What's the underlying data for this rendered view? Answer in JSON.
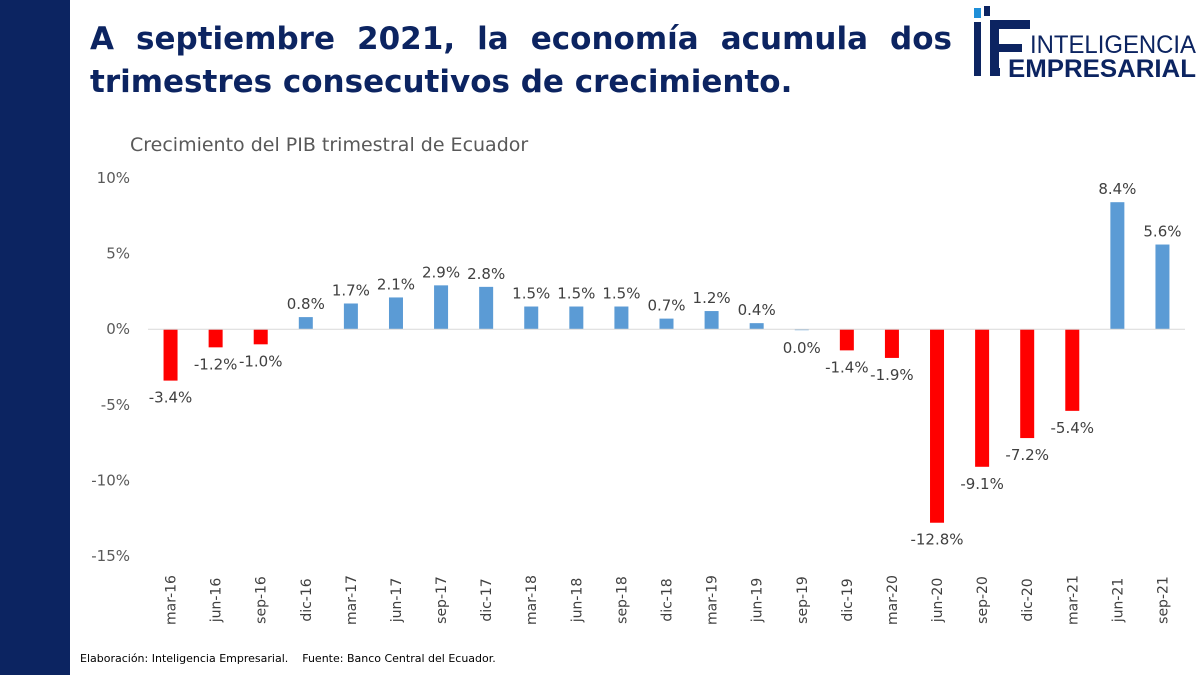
{
  "headline": "A septiembre 2021, la economía acumula dos trimestres consecutivos de  crecimiento.",
  "logo": {
    "line1": "INTELIGENCIA",
    "line2": "EMPRESARIAL",
    "icon": "ie-logo-icon",
    "color": "#0c2461",
    "accent": "#1f8fd8"
  },
  "footer": "Elaboración: Inteligencia Empresarial.    Fuente: Banco Central del Ecuador.",
  "chart_data": {
    "type": "bar",
    "title": "Crecimiento del PIB trimestral de Ecuador",
    "xlabel": "",
    "ylabel": "",
    "ylim": [
      -15,
      10
    ],
    "yticks": [
      10,
      5,
      0,
      -5,
      -10,
      -15
    ],
    "ytick_labels": [
      "10%",
      "5%",
      "0%",
      "-5%",
      "-10%",
      "-15%"
    ],
    "categories": [
      "mar-16",
      "jun-16",
      "sep-16",
      "dic-16",
      "mar-17",
      "jun-17",
      "sep-17",
      "dic-17",
      "mar-18",
      "jun-18",
      "sep-18",
      "dic-18",
      "mar-19",
      "jun-19",
      "sep-19",
      "dic-19",
      "mar-20",
      "jun-20",
      "sep-20",
      "dic-20",
      "mar-21",
      "jun-21",
      "sep-21"
    ],
    "values": [
      -3.4,
      -1.2,
      -1.0,
      0.8,
      1.7,
      2.1,
      2.9,
      2.8,
      1.5,
      1.5,
      1.5,
      0.7,
      1.2,
      0.4,
      0.0,
      -1.4,
      -1.9,
      -12.8,
      -9.1,
      -7.2,
      -5.4,
      8.4,
      5.6
    ],
    "data_labels": [
      "-3.4%",
      "-1.2%",
      "-1.0%",
      "0.8%",
      "1.7%",
      "2.1%",
      "2.9%",
      "2.8%",
      "1.5%",
      "1.5%",
      "1.5%",
      "0.7%",
      "1.2%",
      "0.4%",
      "0.0%",
      "-1.4%",
      "-1.9%",
      "-12.8%",
      "-9.1%",
      "-7.2%",
      "-5.4%",
      "8.4%",
      "5.6%"
    ],
    "colors": {
      "positive": "#5b9bd5",
      "negative": "#ff0000"
    },
    "grid": false,
    "legend": "none"
  }
}
